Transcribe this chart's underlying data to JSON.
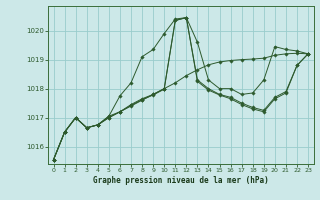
{
  "xlabel": "Graphe pression niveau de la mer (hPa)",
  "background_color": "#cce8e8",
  "grid_color": "#99cccc",
  "line_color": "#2d5a2d",
  "marker_color": "#2d5a2d",
  "ylim": [
    1015.4,
    1020.85
  ],
  "yticks": [
    1016,
    1017,
    1018,
    1019,
    1020
  ],
  "xticks": [
    0,
    1,
    2,
    3,
    4,
    5,
    6,
    7,
    8,
    9,
    10,
    11,
    12,
    13,
    14,
    15,
    16,
    17,
    18,
    19,
    20,
    21,
    22,
    23
  ],
  "series": [
    [
      1015.55,
      1016.5,
      1017.0,
      1016.65,
      1016.75,
      1017.05,
      1017.75,
      1018.2,
      1019.1,
      1019.35,
      1019.9,
      1020.4,
      1020.45,
      1019.6,
      1018.3,
      1018.0,
      1018.0,
      1017.8,
      1017.85,
      1018.3,
      1019.45,
      1019.35,
      1019.3,
      1019.2
    ],
    [
      1015.55,
      1016.5,
      1017.0,
      1016.65,
      1016.75,
      1017.05,
      1017.2,
      1017.45,
      1017.65,
      1017.8,
      1018.0,
      1020.35,
      1020.45,
      1018.3,
      1018.0,
      1017.8,
      1017.7,
      1017.5,
      1017.35,
      1017.25,
      1017.7,
      1017.9,
      1018.8,
      1019.2
    ],
    [
      1015.55,
      1016.5,
      1017.0,
      1016.65,
      1016.75,
      1017.0,
      1017.2,
      1017.4,
      1017.6,
      1017.8,
      1018.0,
      1018.2,
      1018.45,
      1018.65,
      1018.82,
      1018.92,
      1018.97,
      1019.0,
      1019.02,
      1019.05,
      1019.15,
      1019.2,
      1019.22,
      1019.2
    ],
    [
      1015.55,
      1016.5,
      1017.0,
      1016.65,
      1016.75,
      1017.0,
      1017.2,
      1017.42,
      1017.62,
      1017.78,
      1017.98,
      1020.35,
      1020.45,
      1018.25,
      1017.95,
      1017.78,
      1017.65,
      1017.45,
      1017.3,
      1017.2,
      1017.65,
      1017.85,
      1018.8,
      1019.2
    ]
  ],
  "x_all": [
    0,
    1,
    2,
    3,
    4,
    5,
    6,
    7,
    8,
    9,
    10,
    11,
    12,
    13,
    14,
    15,
    16,
    17,
    18,
    19,
    20,
    21,
    22,
    23
  ]
}
